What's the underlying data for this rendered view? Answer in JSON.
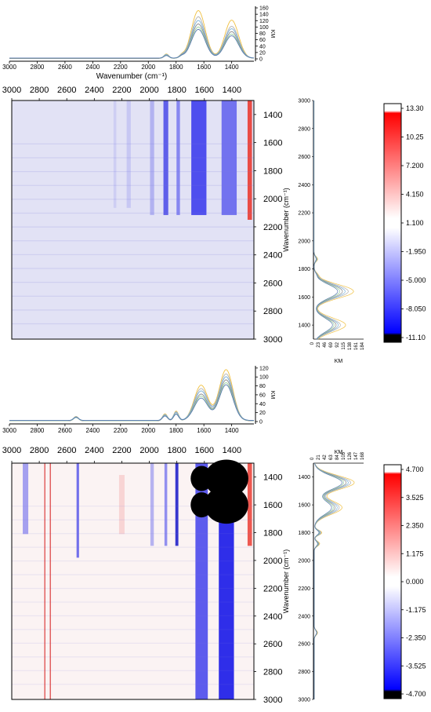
{
  "chart_data": [
    {
      "id": "panel1",
      "type": "heatmap",
      "title": "",
      "top_spectrum": {
        "type": "line",
        "xlabel": "Wavenumber (cm⁻¹)",
        "ylabel": "KM",
        "x_ticks": [
          "3000",
          "2800",
          "2600",
          "2400",
          "2200",
          "2000",
          "1800",
          "1600",
          "1400"
        ],
        "y_ticks": [
          "0",
          "20",
          "40",
          "60",
          "80",
          "100",
          "120",
          "140",
          "160"
        ],
        "xlim": [
          3000,
          1240
        ],
        "ylim": [
          0,
          165
        ],
        "series_colors": [
          "#f0c040",
          "#b0b0b0",
          "#7ab0d8",
          "#888888",
          "#9ad0a0",
          "#5a7ab0"
        ],
        "peaks": [
          {
            "x": 1640,
            "values": [
              150,
              130,
              118,
              108,
              98,
              90
            ]
          },
          {
            "x": 1400,
            "values": [
              120,
              100,
              92,
              84,
              76,
              70
            ]
          },
          {
            "x": 1870,
            "values": [
              14,
              12,
              11,
              10,
              9,
              8
            ]
          },
          {
            "x": 1760,
            "values": [
              8,
              7,
              6,
              6,
              5,
              5
            ]
          }
        ]
      },
      "heatmap": {
        "x_ticks": [
          "3000",
          "2800",
          "2600",
          "2400",
          "2200",
          "2000",
          "1800",
          "1600",
          "1400"
        ],
        "y_ticks": [
          "1400",
          "1600",
          "1800",
          "2000",
          "2200",
          "2400",
          "2600",
          "2800",
          "3000"
        ],
        "y_label": "Wavenumber (cm⁻¹)"
      },
      "side_spectrum": {
        "x_ticks": [
          "0",
          "23",
          "46",
          "69",
          "92",
          "115",
          "138",
          "161",
          "184"
        ],
        "y_ticks": [
          "3000",
          "2800",
          "2600",
          "2400",
          "2200",
          "2000",
          "1800",
          "1600",
          "1400"
        ],
        "x_label": "KM",
        "y_label": "Wavenumber (cm⁻¹)"
      },
      "colorbar": {
        "ticks": [
          "13.30",
          "10.25",
          "7.200",
          "4.150",
          "1.100",
          "-1.950",
          "-5.000",
          "-8.050",
          "-11.10"
        ],
        "min": -11.1,
        "max": 13.3
      }
    },
    {
      "id": "panel2",
      "type": "heatmap",
      "title": "",
      "top_spectrum": {
        "type": "line",
        "xlabel": "",
        "ylabel": "KM",
        "x_ticks": [
          "3000",
          "2800",
          "2600",
          "2400",
          "2200",
          "2000",
          "1800",
          "1600",
          "1400"
        ],
        "y_ticks": [
          "0",
          "20",
          "40",
          "60",
          "80",
          "100",
          "120"
        ],
        "xlim": [
          3000,
          1240
        ],
        "ylim": [
          0,
          125
        ],
        "series_colors": [
          "#f0c040",
          "#b0b0b0",
          "#7ab0d8",
          "#888888",
          "#9ad0a0",
          "#5a7ab0"
        ],
        "peaks": [
          {
            "x": 1620,
            "values": [
              80,
              72,
              66,
              60,
              55,
              50
            ]
          },
          {
            "x": 1440,
            "values": [
              115,
              105,
              98,
              92,
              85,
              80
            ]
          },
          {
            "x": 1800,
            "values": [
              22,
              20,
              18,
              16,
              15,
              14
            ]
          },
          {
            "x": 1880,
            "values": [
              16,
              14,
              13,
              12,
              11,
              10
            ]
          },
          {
            "x": 2520,
            "values": [
              10,
              9,
              8,
              8,
              7,
              7
            ]
          }
        ]
      },
      "heatmap": {
        "x_ticks": [
          "3000",
          "2800",
          "2600",
          "2400",
          "2200",
          "2000",
          "1800",
          "1600",
          "1400"
        ],
        "y_ticks": [
          "1400",
          "1600",
          "1800",
          "2000",
          "2200",
          "2400",
          "2600",
          "2800",
          "3000"
        ],
        "y_label": "Wavenumber (cm⁻¹)"
      },
      "side_spectrum": {
        "x_ticks": [
          "0",
          "21",
          "42",
          "63",
          "84",
          "105",
          "126",
          "147",
          "168"
        ],
        "y_ticks": [
          "1400",
          "1600",
          "1800",
          "2000",
          "2200",
          "2400",
          "2600",
          "2800",
          "3000"
        ],
        "x_label": "KM",
        "y_label": "Wavenumber (cm⁻¹)"
      },
      "colorbar": {
        "ticks": [
          "4.700",
          "3.525",
          "2.350",
          "1.175",
          "0.000",
          "-1.175",
          "-2.350",
          "-3.525",
          "-4.700"
        ],
        "min": -4.7,
        "max": 4.7
      }
    }
  ]
}
